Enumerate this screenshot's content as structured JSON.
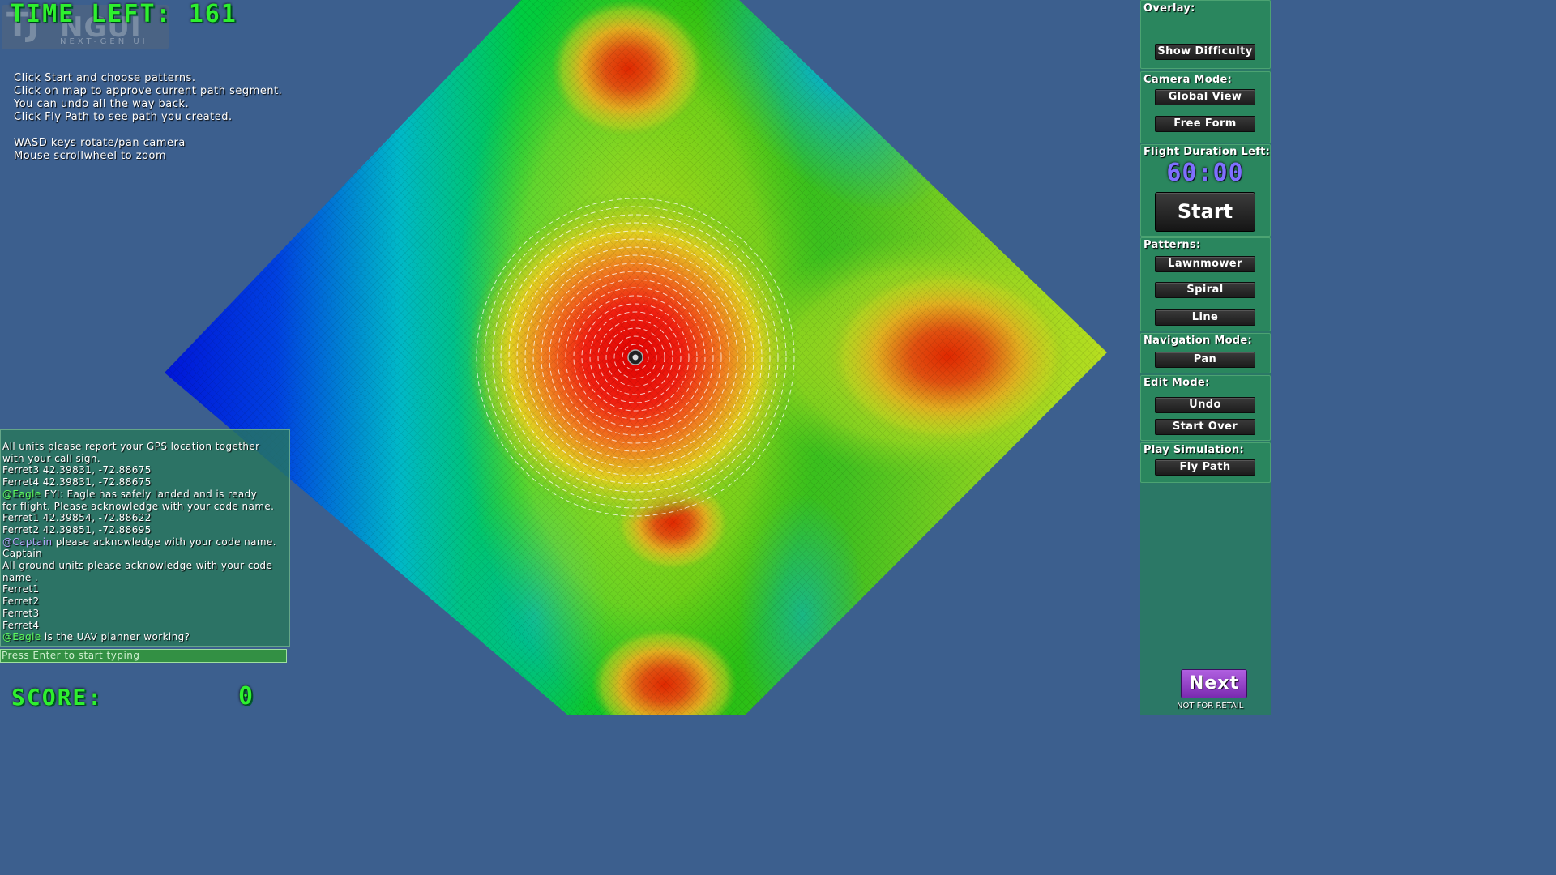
{
  "hud": {
    "timer_label": "TIME LEFT:",
    "timer_value": "161",
    "score_label": "SCORE:",
    "score_value": "0"
  },
  "logo": {
    "mark": "TJ",
    "text": "NGUI",
    "subtitle": "NEXT-GEN UI"
  },
  "instructions": [
    "Click Start and choose patterns.",
    "Click on map to approve current path segment.",
    "You can undo all the way back.",
    "Click Fly Path to see path you created.",
    "",
    "WASD keys rotate/pan camera",
    "Mouse scrollwheel to zoom"
  ],
  "chat": {
    "lines": [
      {
        "mention": "",
        "text": " All units please report your GPS location together"
      },
      {
        "mention": "",
        "text": "with your call sign."
      },
      {
        "mention": "",
        "text": " Ferret3 42.39831, -72.88675"
      },
      {
        "mention": "",
        "text": " Ferret4 42.39831, -72.88675"
      },
      {
        "mention": " @Eagle",
        "mention_type": "eagle",
        "text": " FYI: Eagle has safely landed and is ready"
      },
      {
        "mention": "",
        "text": "for flight. Please acknowledge with your code name."
      },
      {
        "mention": "",
        "text": " Ferret1 42.39854, -72.88622"
      },
      {
        "mention": "",
        "text": " Ferret2 42.39851, -72.88695"
      },
      {
        "mention": " @Captain",
        "mention_type": "captain",
        "text": " please acknowledge with your code name."
      },
      {
        "mention": "",
        "text": " Captain"
      },
      {
        "mention": "",
        "text": " All ground units please acknowledge with  your code"
      },
      {
        "mention": "",
        "text": "name ."
      },
      {
        "mention": "",
        "text": " Ferret1"
      },
      {
        "mention": "",
        "text": " Ferret2"
      },
      {
        "mention": "",
        "text": " Ferret3"
      },
      {
        "mention": "",
        "text": " Ferret4"
      },
      {
        "mention": " @Eagle",
        "mention_type": "eagle",
        "text": " is the UAV planner working?"
      }
    ],
    "input_placeholder": "Press Enter to start typing"
  },
  "panel": {
    "overlay_label": "Overlay:",
    "show_difficulty": "Show Difficulty",
    "camera_label": "Camera Mode:",
    "global_view": "Global View",
    "free_form": "Free Form",
    "flight_label": "Flight Duration Left:",
    "flight_time": "60:00",
    "start": "Start",
    "patterns_label": "Patterns:",
    "lawnmower": "Lawnmower",
    "spiral": "Spiral",
    "line": "Line",
    "navigation_label": "Navigation Mode:",
    "pan": "Pan",
    "edit_label": "Edit Mode:",
    "undo": "Undo",
    "start_over": "Start Over",
    "play_label": "Play Simulation:",
    "fly_path": "Fly Path",
    "next": "Next",
    "not_for_retail": "NOT FOR RETAIL"
  },
  "colors": {
    "background": "#3c5f8e",
    "hud_green": "#2ef02e",
    "flight_time": "#7f6fff",
    "next_button": "#9a44cc",
    "eagle_mention": "#5fff5f",
    "captain_mention": "#b8a8ff"
  }
}
